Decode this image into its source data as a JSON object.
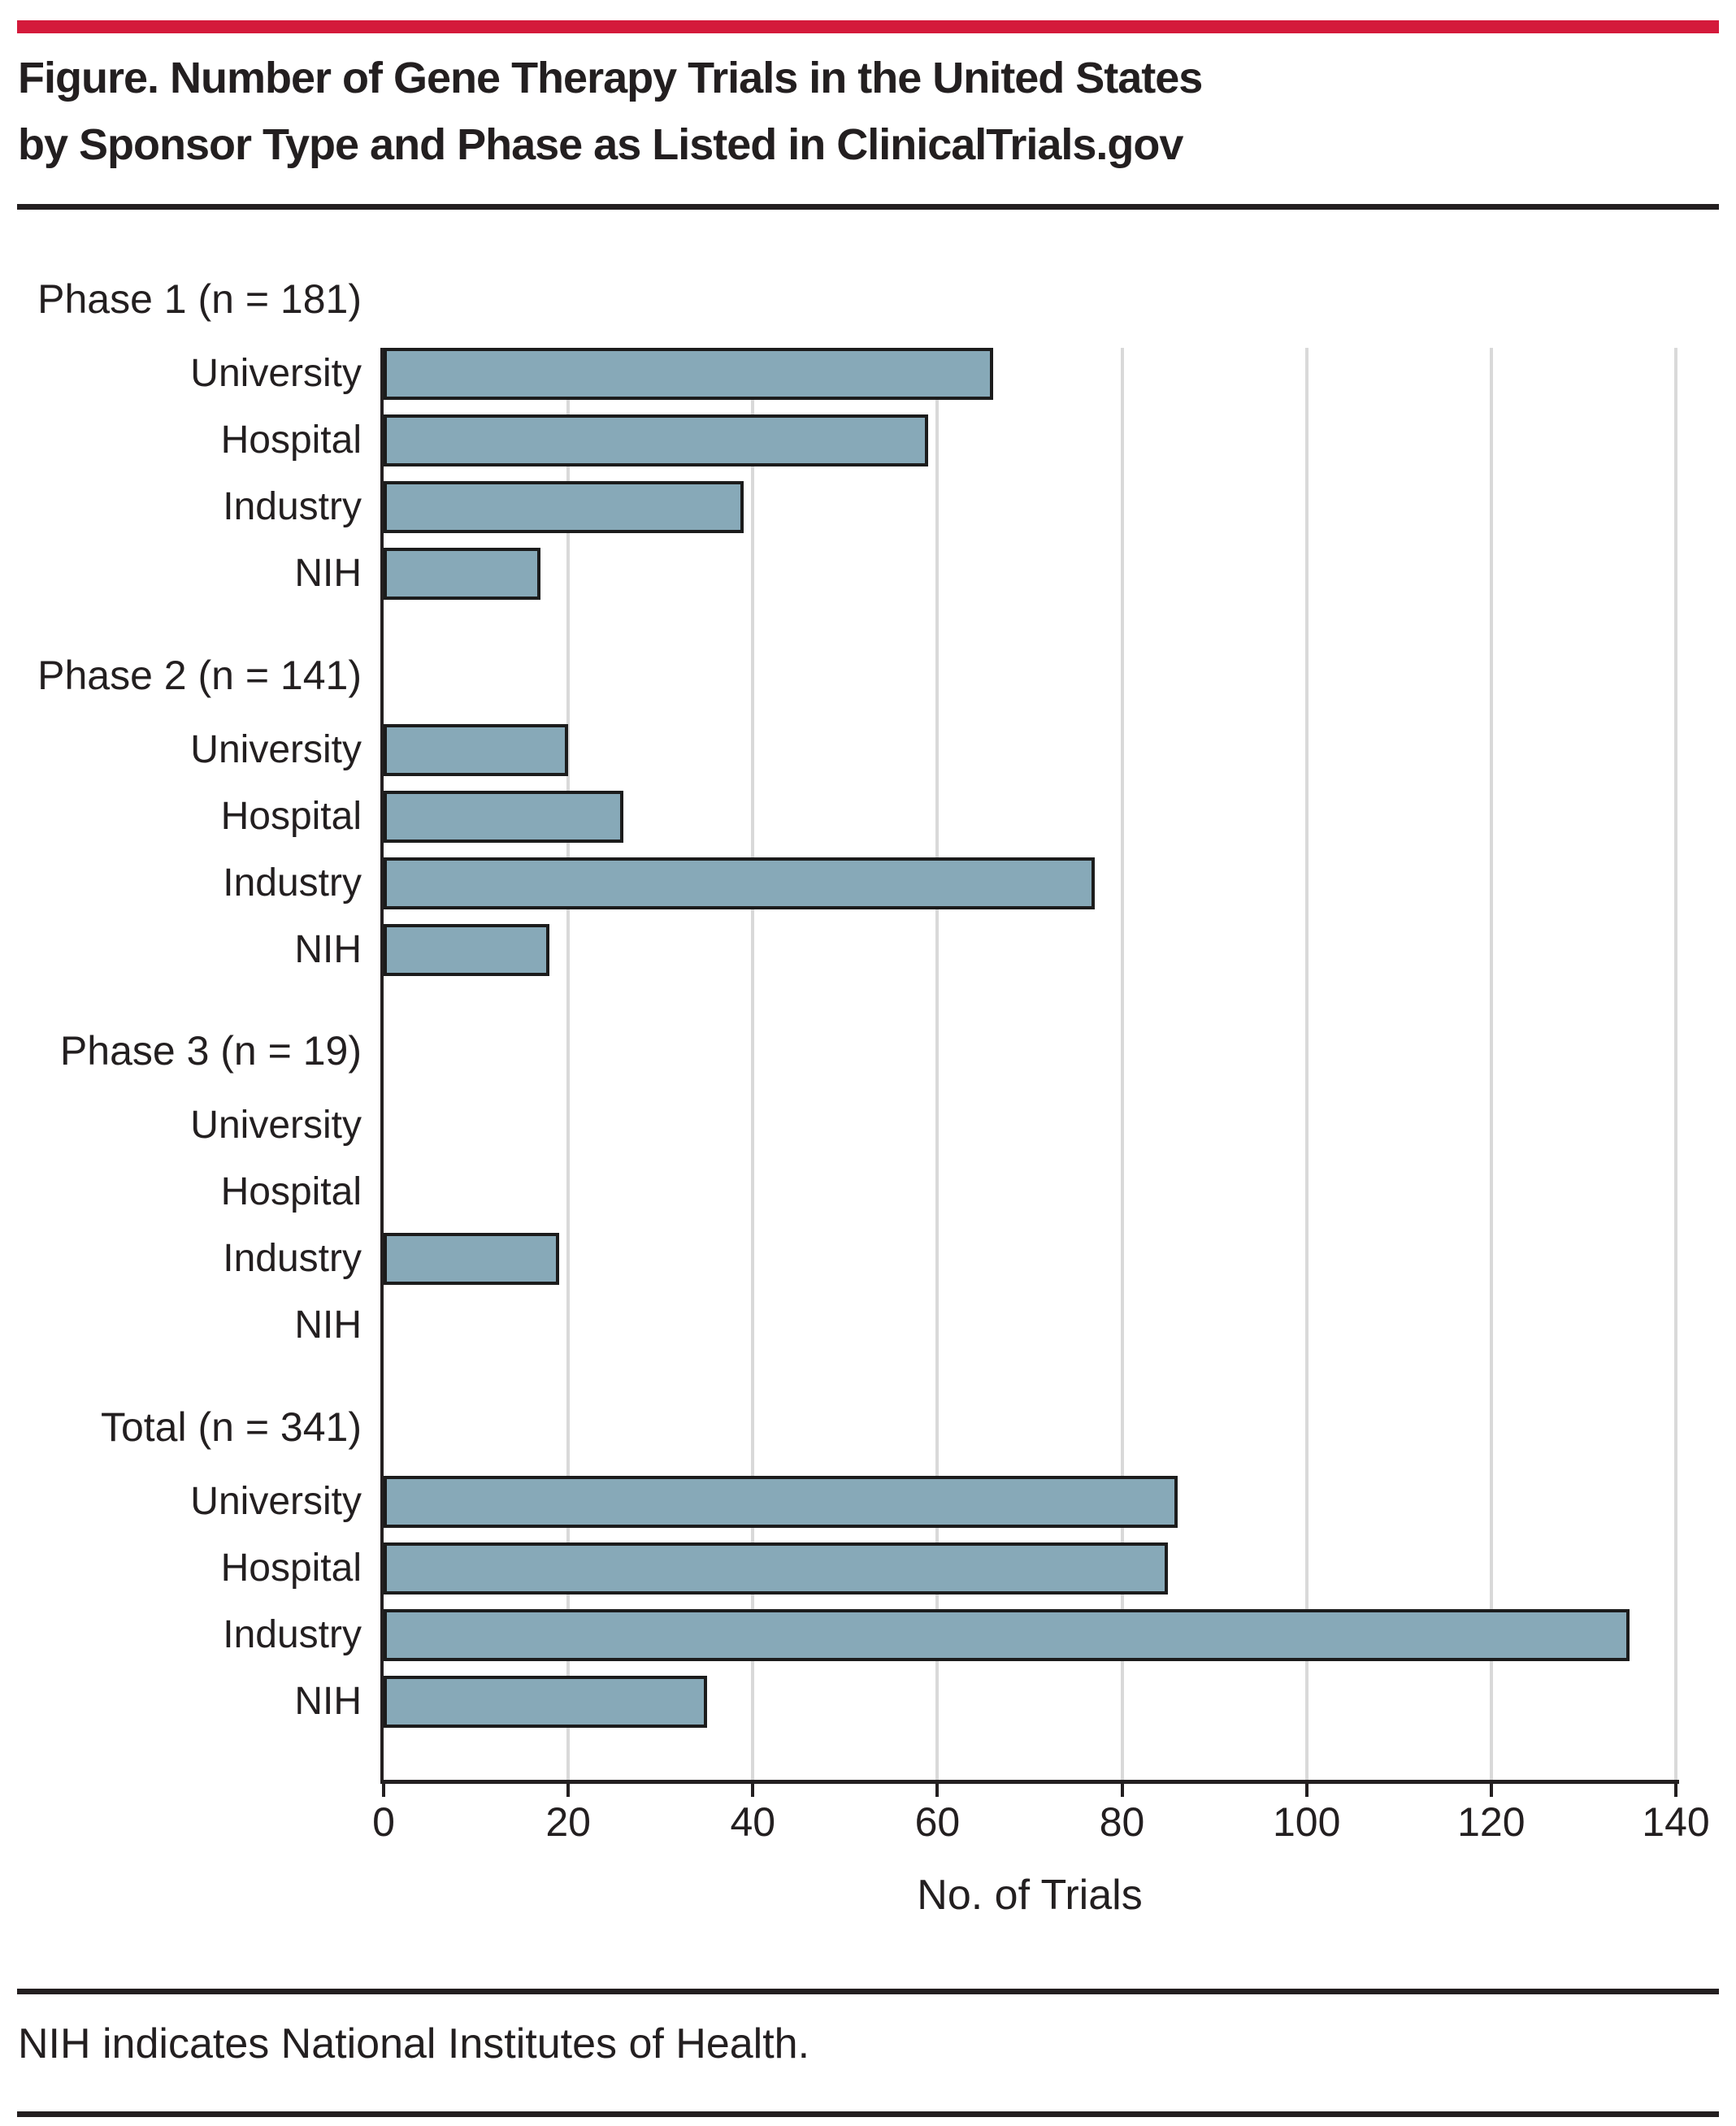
{
  "figure": {
    "title_line1": "Figure. Number of Gene Therapy Trials in the United States",
    "title_line2": "by Sponsor Type and Phase as Listed in ClinicalTrials.gov",
    "footnote": "NIH indicates National Institutes of Health.",
    "accent_color": "#d41a3b",
    "text_color": "#231f20"
  },
  "chart_data": {
    "type": "bar",
    "orientation": "horizontal",
    "title": "Number of Gene Therapy Trials in the United States by Sponsor Type and Phase as Listed in ClinicalTrials.gov",
    "xlabel": "No. of Trials",
    "ylabel": "",
    "xlim": [
      0,
      140
    ],
    "xticks": [
      0,
      20,
      40,
      60,
      80,
      100,
      120,
      140
    ],
    "grid": true,
    "gridline_color": "#d9d9d9",
    "bar_color": "#87a9b8",
    "bar_border_color": "#1c1c1c",
    "categories": [
      "University",
      "Hospital",
      "Industry",
      "NIH"
    ],
    "groups": [
      {
        "label": "Phase 1 (n = 181)",
        "values": [
          66,
          59,
          39,
          17
        ]
      },
      {
        "label": "Phase 2 (n = 141)",
        "values": [
          20,
          26,
          77,
          18
        ]
      },
      {
        "label": "Phase 3 (n = 19)",
        "values": [
          0,
          0,
          19,
          0
        ]
      },
      {
        "label": "Total (n = 341)",
        "values": [
          86,
          85,
          135,
          35
        ]
      }
    ]
  }
}
